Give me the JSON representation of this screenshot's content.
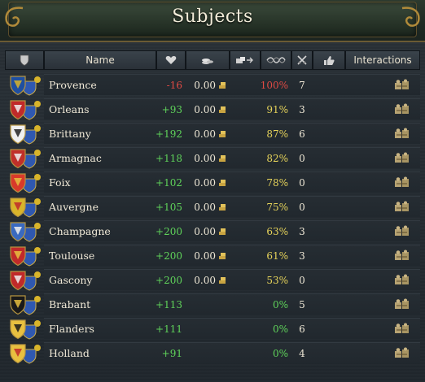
{
  "window": {
    "title": "Subjects"
  },
  "columns": {
    "name": "Name",
    "interactions": "Interactions"
  },
  "icons": {
    "shield_col": "shield-icon",
    "opinion_col": "heart-icon",
    "income_col": "coins-icon",
    "trade_col": "trade-icon",
    "liberty_col": "liberty-icon",
    "army_col": "crossed-swords-icon",
    "favor_col": "thumbs-up-icon",
    "interaction_button": "interaction-icon"
  },
  "colors": {
    "positive": "#5fd35a",
    "negative": "#e04a44",
    "warning": "#e6d35a"
  },
  "subjects": [
    {
      "name": "Provence",
      "opinion": "-16",
      "income": "0.00",
      "liberty": "100%",
      "liberty_level": "red",
      "army": "7",
      "has_income": true,
      "coat": "#1f4fa0",
      "coat2": "#d8b42a"
    },
    {
      "name": "Orleans",
      "opinion": "+93",
      "income": "0.00",
      "liberty": "91%",
      "liberty_level": "yellow",
      "army": "3",
      "has_income": true,
      "coat": "#c02a2a",
      "coat2": "#eeeeee"
    },
    {
      "name": "Brittany",
      "opinion": "+192",
      "income": "0.00",
      "liberty": "87%",
      "liberty_level": "yellow",
      "army": "6",
      "has_income": true,
      "coat": "#f0f0f0",
      "coat2": "#222222"
    },
    {
      "name": "Armagnac",
      "opinion": "+118",
      "income": "0.00",
      "liberty": "82%",
      "liberty_level": "yellow",
      "army": "0",
      "has_income": true,
      "coat": "#c0302a",
      "coat2": "#eeeeee"
    },
    {
      "name": "Foix",
      "opinion": "+102",
      "income": "0.00",
      "liberty": "78%",
      "liberty_level": "yellow",
      "army": "0",
      "has_income": true,
      "coat": "#d83a2a",
      "coat2": "#e8c040"
    },
    {
      "name": "Auvergne",
      "opinion": "+105",
      "income": "0.00",
      "liberty": "75%",
      "liberty_level": "yellow",
      "army": "0",
      "has_income": true,
      "coat": "#d8b42a",
      "coat2": "#c02a2a"
    },
    {
      "name": "Champagne",
      "opinion": "+200",
      "income": "0.00",
      "liberty": "63%",
      "liberty_level": "yellow",
      "army": "3",
      "has_income": true,
      "coat": "#3a6ac0",
      "coat2": "#f0f0f0"
    },
    {
      "name": "Toulouse",
      "opinion": "+200",
      "income": "0.00",
      "liberty": "61%",
      "liberty_level": "yellow",
      "army": "3",
      "has_income": true,
      "coat": "#c02a2a",
      "coat2": "#e8c040"
    },
    {
      "name": "Gascony",
      "opinion": "+200",
      "income": "0.00",
      "liberty": "53%",
      "liberty_level": "yellow",
      "army": "0",
      "has_income": true,
      "coat": "#c02a2a",
      "coat2": "#f0f0f0"
    },
    {
      "name": "Brabant",
      "opinion": "+113",
      "income": "",
      "liberty": "0%",
      "liberty_level": "green",
      "army": "5",
      "has_income": false,
      "coat": "#1a1a1a",
      "coat2": "#e8c040"
    },
    {
      "name": "Flanders",
      "opinion": "+111",
      "income": "",
      "liberty": "0%",
      "liberty_level": "green",
      "army": "6",
      "has_income": false,
      "coat": "#e8c040",
      "coat2": "#1a1a1a"
    },
    {
      "name": "Holland",
      "opinion": "+91",
      "income": "",
      "liberty": "0%",
      "liberty_level": "green",
      "army": "4",
      "has_income": false,
      "coat": "#e8c040",
      "coat2": "#c02a2a"
    }
  ]
}
